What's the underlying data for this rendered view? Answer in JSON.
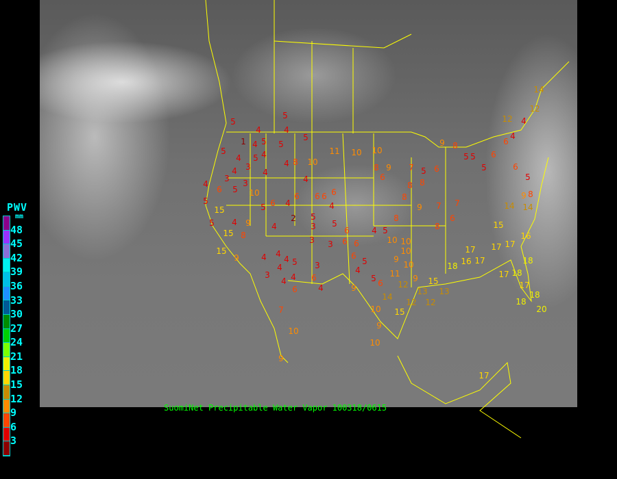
{
  "caption": "SuomiNet Precipitable Water Vapor 100318/0615",
  "legend": {
    "title": "PWV",
    "unit": "mm",
    "ticks": [
      "48",
      "45",
      "42",
      "39",
      "36",
      "33",
      "30",
      "27",
      "24",
      "21",
      "18",
      "15",
      "12",
      "9",
      "6",
      "3"
    ],
    "colors": [
      "#8b008b",
      "#9932ff",
      "#8a6fd8",
      "#00f0f0",
      "#00bfe8",
      "#1e90ff",
      "#005a96",
      "#008c00",
      "#00d000",
      "#7cff00",
      "#f0f000",
      "#ffd700",
      "#c88c00",
      "#ff8c00",
      "#ff4500",
      "#e00000",
      "#8b0000"
    ]
  },
  "boundary_color": "#ffff00",
  "stations": [
    5,
    5,
    4,
    1,
    4,
    5,
    4,
    5,
    4,
    5,
    5,
    4,
    5,
    4,
    3,
    3,
    4,
    4,
    8,
    10,
    4,
    11,
    10,
    10,
    8,
    9,
    6,
    7,
    8,
    8,
    6,
    9,
    8,
    5,
    5,
    5,
    6,
    6,
    4,
    4,
    12,
    14,
    12,
    6,
    5,
    8,
    9,
    14,
    14,
    15,
    16,
    17,
    17,
    17,
    17,
    16,
    8,
    6,
    7,
    7,
    5,
    8,
    9,
    8,
    4,
    5,
    10,
    10,
    10,
    9,
    10,
    9,
    13,
    15,
    13,
    12,
    12,
    12,
    11,
    6,
    5,
    9,
    4,
    5,
    6,
    6,
    6,
    3,
    3,
    3,
    6,
    4,
    5,
    4,
    4,
    4,
    3,
    4,
    4,
    4,
    6,
    7,
    10,
    9,
    10,
    14,
    15,
    10,
    9,
    2,
    5,
    3,
    5,
    6,
    4,
    6,
    6,
    6,
    6,
    4,
    6,
    5,
    4,
    10,
    8,
    9,
    15,
    15,
    15,
    4,
    4,
    6,
    5,
    5,
    5,
    3,
    9,
    18,
    17,
    18,
    18,
    20,
    18,
    17,
    17,
    18
  ]
}
